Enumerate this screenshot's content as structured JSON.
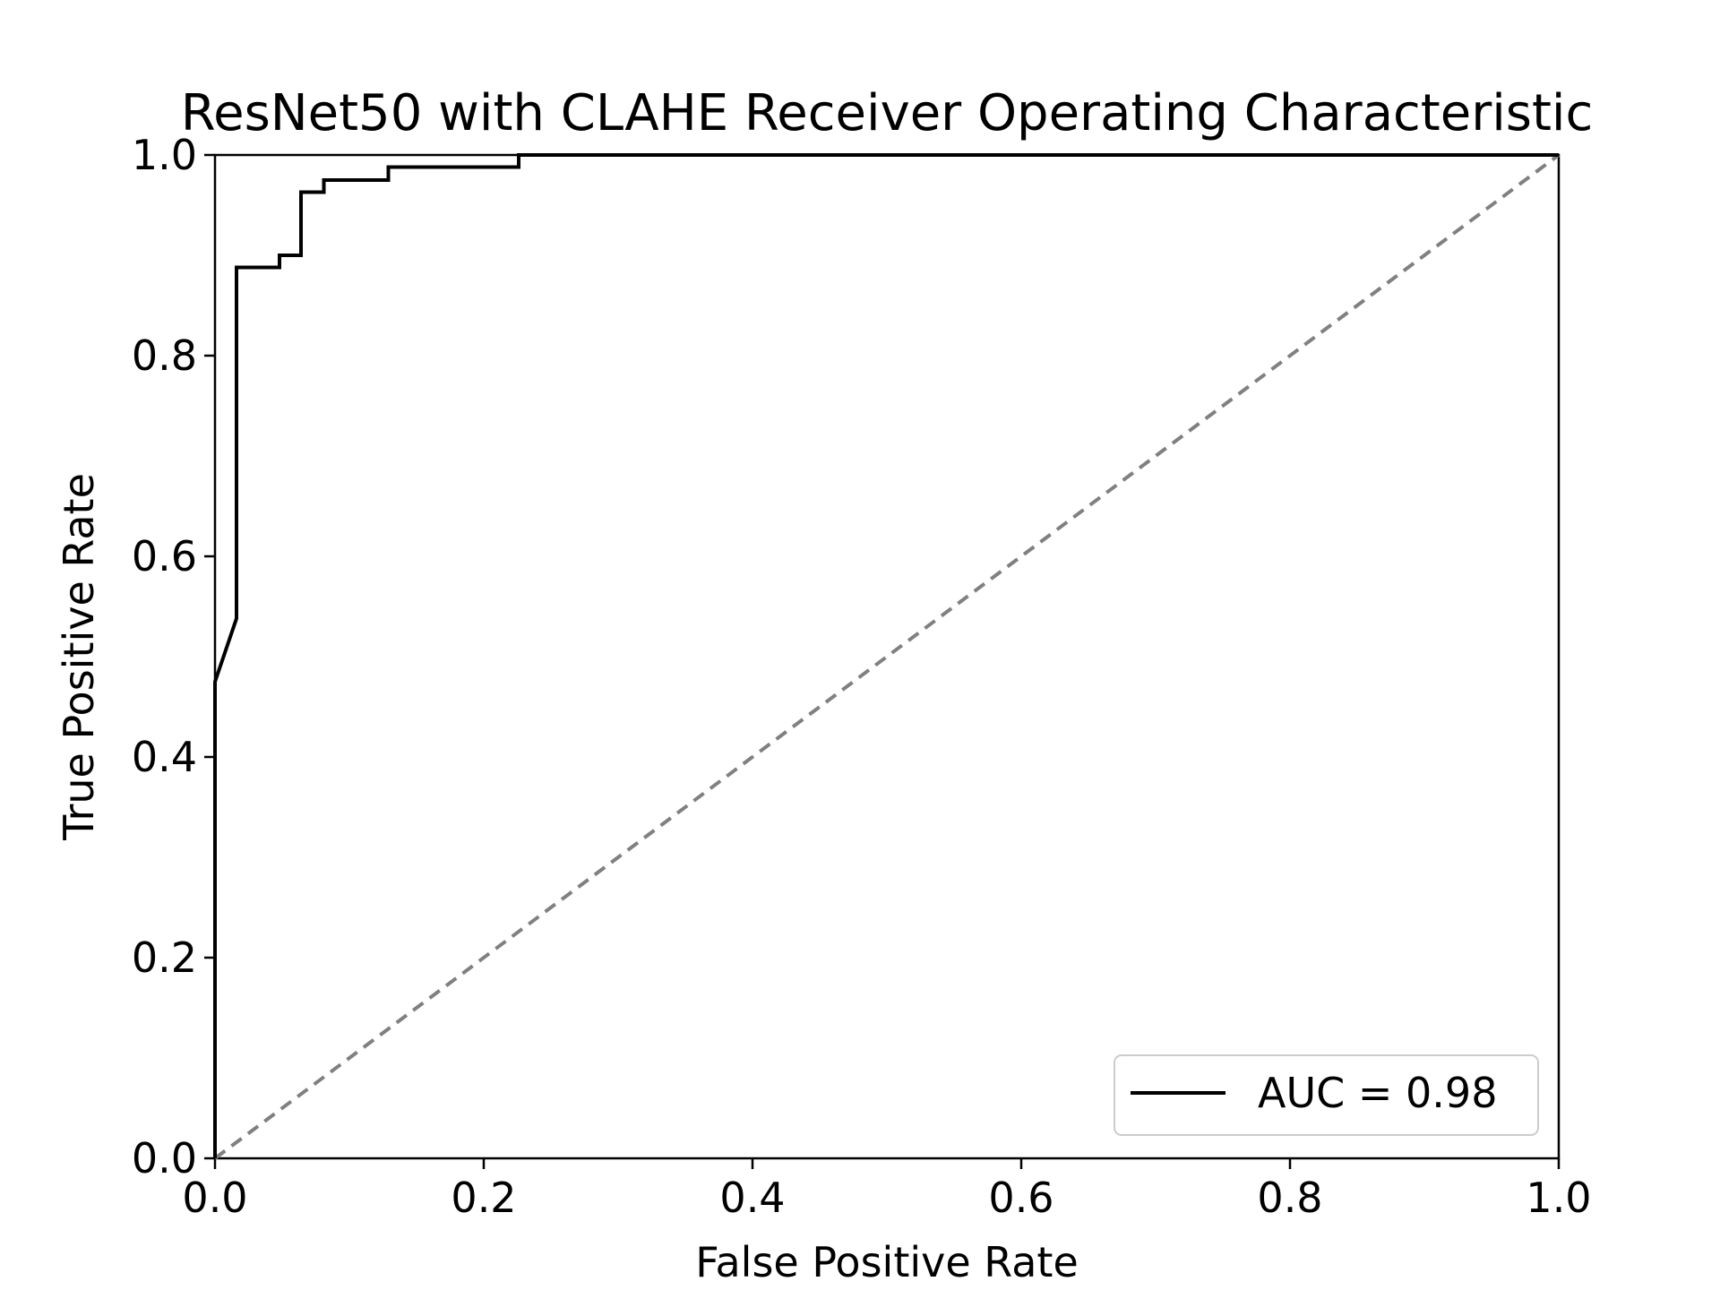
{
  "chart_data": {
    "type": "line",
    "title": "ResNet50 with CLAHE Receiver Operating Characteristic",
    "xlabel": "False Positive Rate",
    "ylabel": "True Positive Rate",
    "xlim": [
      0.0,
      1.0
    ],
    "ylim": [
      0.0,
      1.0
    ],
    "x_ticks": [
      "0.0",
      "0.2",
      "0.4",
      "0.6",
      "0.8",
      "1.0"
    ],
    "y_ticks": [
      "0.0",
      "0.2",
      "0.4",
      "0.6",
      "0.8",
      "1.0"
    ],
    "grid": false,
    "legend_position": "bottom-right",
    "series": [
      {
        "name": "AUC = 0.98",
        "color": "#000000",
        "style": "solid",
        "x": [
          0.0,
          0.0,
          0.016,
          0.016,
          0.048,
          0.048,
          0.064,
          0.064,
          0.081,
          0.081,
          0.129,
          0.129,
          0.226,
          0.226,
          1.0
        ],
        "y": [
          0.0,
          0.475,
          0.538,
          0.888,
          0.888,
          0.9,
          0.9,
          0.963,
          0.963,
          0.975,
          0.975,
          0.988,
          0.988,
          1.0,
          1.0
        ]
      }
    ],
    "reference_line": {
      "x": [
        0.0,
        1.0
      ],
      "y": [
        0.0,
        1.0
      ],
      "color": "#808080",
      "style": "dashed"
    }
  }
}
